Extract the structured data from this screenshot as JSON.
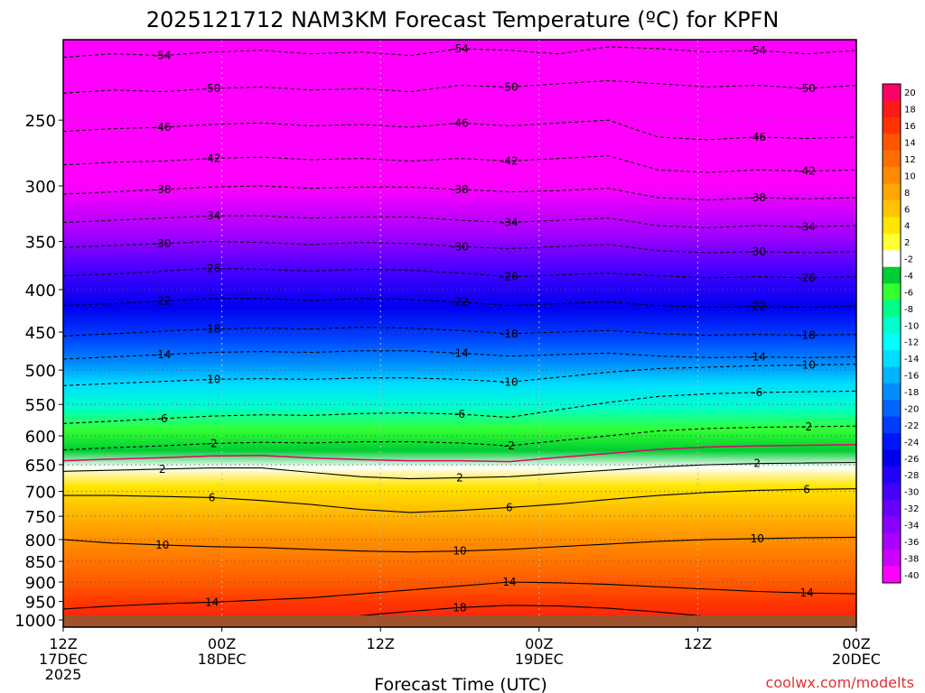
{
  "chart_data": {
    "type": "heatmap",
    "title": "2025121712 NAM3KM Forecast Temperature (ºC) for KPFN",
    "xlabel": "Forecast Time (UTC)",
    "ylabel": "",
    "credit": "coolwx.com/modelts",
    "pressure_axis_hpa": {
      "top": 200,
      "bottom": 1020
    },
    "hours_range": [
      0,
      60
    ],
    "y_ticks": [
      "250",
      "300",
      "350",
      "400",
      "450",
      "500",
      "550",
      "600",
      "650",
      "700",
      "750",
      "800",
      "850",
      "900",
      "950",
      "1000"
    ],
    "y_tick_values": [
      250,
      300,
      350,
      400,
      450,
      500,
      550,
      600,
      650,
      700,
      750,
      800,
      850,
      900,
      950,
      1000
    ],
    "x_ticks": [
      {
        "hour": 0,
        "line1": "12Z",
        "line2": "17DEC",
        "line3": "2025"
      },
      {
        "hour": 12,
        "line1": "00Z",
        "line2": "18DEC",
        "line3": ""
      },
      {
        "hour": 24,
        "line1": "12Z",
        "line2": "",
        "line3": ""
      },
      {
        "hour": 36,
        "line1": "00Z",
        "line2": "19DEC",
        "line3": ""
      },
      {
        "hour": 48,
        "line1": "12Z",
        "line2": "",
        "line3": ""
      },
      {
        "hour": 60,
        "line1": "00Z",
        "line2": "20DEC",
        "line3": ""
      }
    ],
    "isotherms": [
      {
        "temp": -54,
        "pressures": [
          210,
          208,
          209,
          207,
          206,
          208,
          207,
          209,
          205,
          206,
          208,
          204,
          205,
          207,
          206,
          208,
          206
        ]
      },
      {
        "temp": -50,
        "pressures": [
          232,
          230,
          231,
          229,
          228,
          230,
          229,
          231,
          227,
          228,
          226,
          224,
          226,
          228,
          227,
          229,
          227
        ]
      },
      {
        "temp": -46,
        "pressures": [
          258,
          256,
          255,
          253,
          252,
          254,
          253,
          255,
          252,
          254,
          252,
          250,
          262,
          264,
          262,
          263,
          262
        ]
      },
      {
        "temp": -42,
        "pressures": [
          283,
          281,
          280,
          278,
          277,
          279,
          278,
          280,
          278,
          280,
          278,
          276,
          287,
          289,
          287,
          288,
          287
        ]
      },
      {
        "temp": -38,
        "pressures": [
          307,
          305,
          303,
          301,
          300,
          302,
          301,
          301,
          303,
          305,
          304,
          302,
          310,
          312,
          310,
          311,
          310
        ]
      },
      {
        "temp": -34,
        "pressures": [
          332,
          330,
          328,
          326,
          326,
          328,
          327,
          327,
          330,
          332,
          330,
          328,
          335,
          337,
          335,
          336,
          335
        ]
      },
      {
        "temp": -30,
        "pressures": [
          356,
          354,
          352,
          350,
          351,
          353,
          351,
          352,
          355,
          357,
          355,
          353,
          359,
          361,
          360,
          361,
          360
        ]
      },
      {
        "temp": -26,
        "pressures": [
          385,
          383,
          380,
          377,
          378,
          380,
          378,
          379,
          382,
          386,
          384,
          382,
          385,
          387,
          386,
          387,
          386
        ]
      },
      {
        "temp": -22,
        "pressures": [
          418,
          416,
          413,
          410,
          410,
          412,
          410,
          411,
          414,
          418,
          416,
          414,
          418,
          420,
          419,
          420,
          419
        ]
      },
      {
        "temp": -18,
        "pressures": [
          455,
          452,
          449,
          446,
          445,
          446,
          444,
          445,
          448,
          452,
          450,
          448,
          452,
          454,
          453,
          454,
          453
        ]
      },
      {
        "temp": -14,
        "pressures": [
          485,
          482,
          479,
          476,
          475,
          476,
          474,
          474,
          477,
          481,
          479,
          477,
          481,
          483,
          482,
          483,
          482
        ]
      },
      {
        "temp": -10,
        "pressures": [
          522,
          519,
          516,
          513,
          512,
          513,
          511,
          511,
          513,
          517,
          510,
          503,
          498,
          496,
          494,
          493,
          492
        ]
      },
      {
        "temp": -6,
        "pressures": [
          580,
          576,
          572,
          568,
          566,
          567,
          564,
          563,
          565,
          570,
          558,
          547,
          538,
          534,
          532,
          531,
          530
        ]
      },
      {
        "temp": -2,
        "pressures": [
          624,
          620,
          617,
          613,
          611,
          612,
          610,
          610,
          612,
          617,
          608,
          600,
          592,
          588,
          586,
          585,
          584
        ]
      },
      {
        "temp": 2,
        "pressures": [
          662,
          660,
          658,
          656,
          656,
          664,
          672,
          676,
          674,
          672,
          666,
          660,
          654,
          650,
          648,
          647,
          646
        ]
      },
      {
        "temp": 6,
        "pressures": [
          708,
          708,
          710,
          712,
          718,
          726,
          736,
          742,
          738,
          732,
          725,
          716,
          708,
          702,
          698,
          696,
          695
        ]
      },
      {
        "temp": 10,
        "pressures": [
          800,
          808,
          812,
          816,
          818,
          822,
          826,
          828,
          826,
          822,
          816,
          810,
          804,
          800,
          798,
          796,
          795
        ]
      },
      {
        "temp": 14,
        "pressures": [
          970,
          962,
          956,
          952,
          946,
          940,
          930,
          920,
          910,
          900,
          902,
          906,
          912,
          918,
          924,
          928,
          930
        ]
      },
      {
        "temp": 18,
        "pressures": [
          1020,
          1018,
          1016,
          1012,
          1006,
          998,
          988,
          976,
          966,
          960,
          962,
          968,
          978,
          990,
          1002,
          1012,
          1018
        ]
      }
    ],
    "colorbar": {
      "labels": [
        "20",
        "18",
        "16",
        "14",
        "12",
        "10",
        "8",
        "6",
        "4",
        "2",
        "-2",
        "-4",
        "-6",
        "-8",
        "-10",
        "-12",
        "-14",
        "-16",
        "-18",
        "-20",
        "-22",
        "-24",
        "-26",
        "-28",
        "-30",
        "-32",
        "-34",
        "-36",
        "-38",
        "-40"
      ],
      "colors": [
        "#ff0066",
        "#ff1a1a",
        "#ff3300",
        "#ff5500",
        "#ff6f00",
        "#ff8a00",
        "#ffa600",
        "#ffc400",
        "#ffe600",
        "#ffff33",
        "#ffffff",
        "#00cc33",
        "#33ff33",
        "#00ff88",
        "#00ffcc",
        "#00ffff",
        "#00ddff",
        "#00b4ff",
        "#008cff",
        "#0064ff",
        "#003cff",
        "#0014ff",
        "#0000ee",
        "#2200ff",
        "#4400ff",
        "#6600ff",
        "#8800ff",
        "#aa00ff",
        "#cc00ff",
        "#ff00ff"
      ]
    },
    "contour_label_color": "#000000",
    "freezing_line_color": "#e60073",
    "ground_color": "#a0522d"
  }
}
